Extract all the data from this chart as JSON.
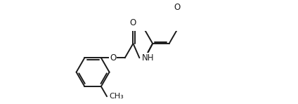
{
  "bg_color": "#ffffff",
  "line_color": "#1a1a1a",
  "line_width": 1.4,
  "fig_width": 4.24,
  "fig_height": 1.48,
  "dpi": 100,
  "font_size": 8.5,
  "xlim": [
    -0.5,
    9.5
  ],
  "ylim": [
    -2.2,
    2.2
  ]
}
